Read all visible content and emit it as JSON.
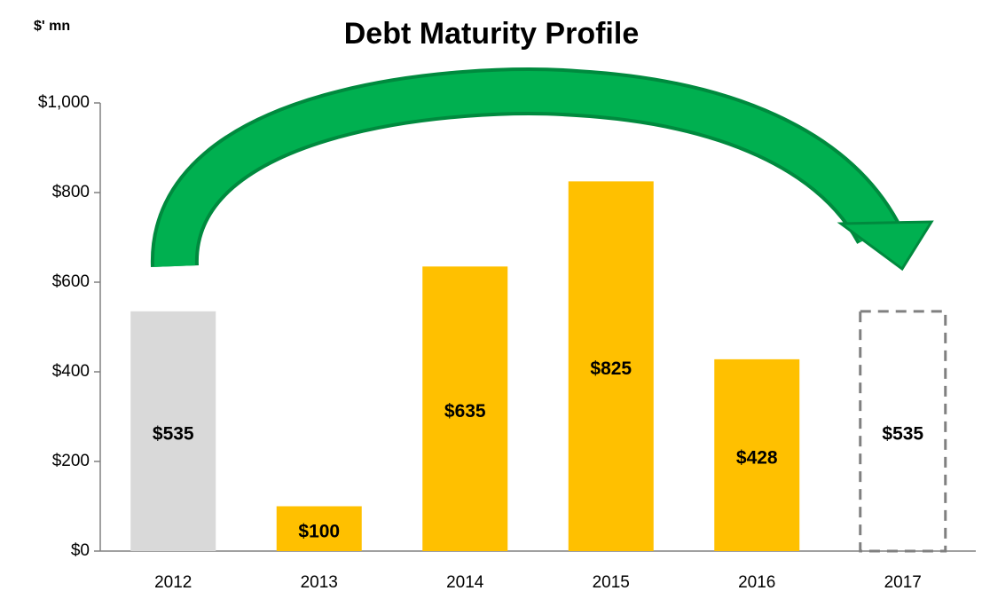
{
  "chart_data": {
    "type": "bar",
    "title": "Debt Maturity Profile",
    "unit_label": "$' mn",
    "categories": [
      "2012",
      "2013",
      "2014",
      "2015",
      "2016",
      "2017"
    ],
    "values": [
      535,
      100,
      635,
      825,
      428,
      535
    ],
    "value_labels": [
      "$535",
      "$100",
      "$635",
      "$825",
      "$428",
      "$535"
    ],
    "colors": [
      "#d9d9d9",
      "#ffc000",
      "#ffc000",
      "#ffc000",
      "#ffc000",
      "#808080"
    ],
    "bar_styles": [
      "solid",
      "solid",
      "solid",
      "solid",
      "solid",
      "dashed"
    ],
    "ylim": [
      0,
      1000
    ],
    "yticks": [
      {
        "value": 0,
        "label": "$0"
      },
      {
        "value": 200,
        "label": "$200"
      },
      {
        "value": 400,
        "label": "$400"
      },
      {
        "value": 600,
        "label": "$600"
      },
      {
        "value": 800,
        "label": "$800"
      },
      {
        "value": 1000,
        "label": "$1,000"
      }
    ],
    "grid": false
  }
}
